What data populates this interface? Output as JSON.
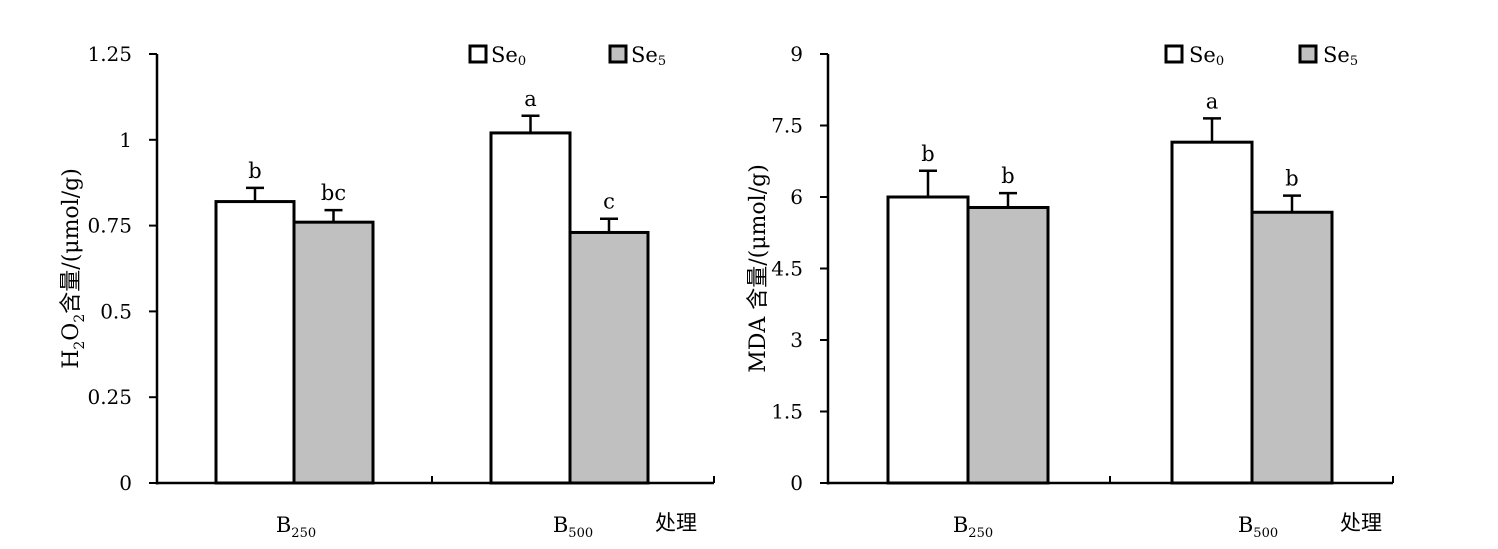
{
  "chart_data": [
    {
      "type": "bar",
      "categories": [
        "B250",
        "B500"
      ],
      "category_labels": [
        {
          "main": "B",
          "sub": "250"
        },
        {
          "main": "B",
          "sub": "500"
        }
      ],
      "xlabel": "处理",
      "ylabel_parts": [
        {
          "t": "H",
          "sub": false
        },
        {
          "t": "2",
          "sub": true
        },
        {
          "t": "O",
          "sub": false
        },
        {
          "t": "2",
          "sub": true
        },
        {
          "t": "含量/(μmol/g)",
          "sub": false
        }
      ],
      "ylim": [
        0,
        1.25
      ],
      "yticks": [
        0,
        0.25,
        0.5,
        0.75,
        1,
        1.25
      ],
      "ytick_labels": [
        "0",
        "0.25",
        "0.5",
        "0.75",
        "1",
        "1.25"
      ],
      "series": [
        {
          "name": "Se0",
          "legend_main": "Se",
          "legend_sub": "0",
          "color": "#ffffff",
          "values": [
            0.82,
            1.02
          ],
          "errors": [
            0.04,
            0.05
          ],
          "letters": [
            "b",
            "a"
          ]
        },
        {
          "name": "Se5",
          "legend_main": "Se",
          "legend_sub": "5",
          "color": "#c0c0c0",
          "values": [
            0.76,
            0.73
          ],
          "errors": [
            0.035,
            0.04
          ],
          "letters": [
            "bc",
            "c"
          ]
        }
      ],
      "legend": "top-right",
      "grid": false
    },
    {
      "type": "bar",
      "categories": [
        "B250",
        "B500"
      ],
      "category_labels": [
        {
          "main": "B",
          "sub": "250"
        },
        {
          "main": "B",
          "sub": "500"
        }
      ],
      "xlabel": "处理",
      "ylabel_parts": [
        {
          "t": "MDA 含量/(μmol/g)",
          "sub": false
        }
      ],
      "ylim": [
        0,
        9
      ],
      "yticks": [
        0,
        1.5,
        3,
        4.5,
        6,
        7.5,
        9
      ],
      "ytick_labels": [
        "0",
        "1.5",
        "3",
        "4.5",
        "6",
        "7.5",
        "9"
      ],
      "series": [
        {
          "name": "Se0",
          "legend_main": "Se",
          "legend_sub": "0",
          "color": "#ffffff",
          "values": [
            6.0,
            7.15
          ],
          "errors": [
            0.55,
            0.5
          ],
          "letters": [
            "b",
            "a"
          ]
        },
        {
          "name": "Se5",
          "legend_main": "Se",
          "legend_sub": "5",
          "color": "#c0c0c0",
          "values": [
            5.78,
            5.68
          ],
          "errors": [
            0.3,
            0.35
          ],
          "letters": [
            "b",
            "b"
          ]
        }
      ],
      "legend": "top-right",
      "grid": false
    }
  ]
}
